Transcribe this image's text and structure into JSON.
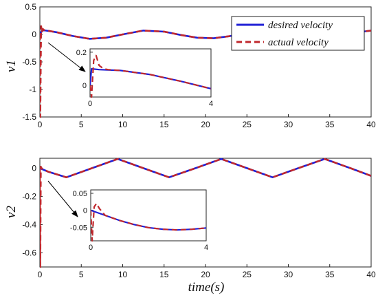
{
  "chart_data": [
    {
      "type": "line",
      "ylabel": "v1",
      "xlim": [
        0,
        40
      ],
      "ylim": [
        -1.5,
        0.5
      ],
      "xticks": [
        "0",
        "5",
        "10",
        "15",
        "20",
        "25",
        "30",
        "35",
        "40"
      ],
      "yticks": [
        "0.5",
        "0",
        "-0.5",
        "-1",
        "-1.5"
      ],
      "legend": {
        "position": "top-right",
        "entries": [
          "desired velocity",
          "actual velocity"
        ]
      },
      "series": [
        {
          "name": "desired velocity",
          "color": "#1f1fd6",
          "style": "solid",
          "x": [
            0,
            0.3,
            2,
            4,
            6,
            8,
            10,
            12.5,
            15,
            17,
            19,
            21,
            23,
            25,
            27,
            29,
            31,
            33,
            35,
            37,
            39,
            40
          ],
          "y": [
            0,
            0.08,
            0.04,
            -0.03,
            -0.08,
            -0.06,
            0.0,
            0.07,
            0.05,
            -0.01,
            -0.06,
            -0.07,
            -0.03,
            0.03,
            0.07,
            0.06,
            0.0,
            -0.06,
            -0.07,
            -0.02,
            0.05,
            0.07
          ]
        },
        {
          "name": "actual velocity",
          "color": "#c0282d",
          "style": "dashed",
          "x": [
            0,
            0.05,
            0.15,
            0.25,
            0.35,
            0.5,
            2,
            4,
            6,
            8,
            10,
            12.5,
            15,
            17,
            19,
            21,
            23,
            25,
            27,
            29,
            31,
            33,
            35,
            37,
            39,
            40
          ],
          "y": [
            0,
            -1.5,
            0.15,
            0.05,
            0.1,
            0.08,
            0.04,
            -0.03,
            -0.08,
            -0.06,
            0.0,
            0.07,
            0.05,
            -0.01,
            -0.06,
            -0.07,
            -0.03,
            0.03,
            0.07,
            0.06,
            0.0,
            -0.06,
            -0.07,
            -0.02,
            0.05,
            0.07
          ]
        }
      ],
      "inset": {
        "xlim": [
          0,
          4
        ],
        "ylim": [
          -0.07,
          0.22
        ],
        "xticks": [
          "0",
          "4"
        ],
        "yticks": [
          "0.2",
          "0"
        ],
        "series": [
          {
            "name": "desired velocity",
            "x": [
              0,
              0.05,
              0.3,
              1,
              2,
              3,
              4
            ],
            "y": [
              0,
              0.1,
              0.095,
              0.09,
              0.065,
              0.025,
              -0.02
            ]
          },
          {
            "name": "actual velocity",
            "x": [
              0,
              0.05,
              0.12,
              0.2,
              0.3,
              0.45,
              0.6,
              1,
              2,
              3,
              4
            ],
            "y": [
              0,
              -0.07,
              0.15,
              0.18,
              0.12,
              0.1,
              0.095,
              0.09,
              0.065,
              0.025,
              -0.02
            ]
          }
        ]
      }
    },
    {
      "type": "line",
      "ylabel": "v2",
      "xlabel": "time(s)",
      "xlim": [
        0,
        40
      ],
      "ylim": [
        -0.7,
        0.07
      ],
      "xticks": [
        "0",
        "5",
        "10",
        "15",
        "20",
        "25",
        "30",
        "35",
        "40"
      ],
      "yticks": [
        "0",
        "-0.2",
        "-0.4",
        "-0.6"
      ],
      "series": [
        {
          "name": "desired velocity",
          "color": "#1f1fd6",
          "style": "solid",
          "x": [
            0,
            1,
            3.2,
            6.3,
            9.4,
            12.5,
            15.6,
            18.8,
            21.9,
            25,
            28.1,
            31.2,
            34.4,
            37.5,
            40
          ],
          "y": [
            0,
            -0.025,
            -0.065,
            0.0,
            0.065,
            0.0,
            -0.065,
            0.0,
            0.065,
            0.0,
            -0.065,
            0.0,
            0.065,
            0.0,
            -0.055
          ]
        },
        {
          "name": "actual velocity",
          "color": "#c0282d",
          "style": "dashed",
          "x": [
            0,
            0.05,
            0.12,
            0.2,
            0.3,
            1,
            3.2,
            6.3,
            9.4,
            12.5,
            15.6,
            18.8,
            21.9,
            25,
            28.1,
            31.2,
            34.4,
            37.5,
            40
          ],
          "y": [
            0,
            -0.7,
            0.01,
            0.0,
            -0.005,
            -0.025,
            -0.065,
            0.0,
            0.065,
            0.0,
            -0.065,
            0.0,
            0.065,
            0.0,
            -0.065,
            0.0,
            0.065,
            0.0,
            -0.055
          ]
        }
      ],
      "inset": {
        "xlim": [
          0,
          4
        ],
        "ylim": [
          -0.09,
          0.06
        ],
        "xticks": [
          "0",
          "4"
        ],
        "yticks": [
          "0.05",
          "0",
          "-0.05"
        ],
        "series": [
          {
            "name": "desired velocity",
            "x": [
              0,
              0.5,
              1,
              1.5,
              2,
              2.5,
              3,
              3.5,
              4
            ],
            "y": [
              0,
              -0.015,
              -0.03,
              -0.042,
              -0.051,
              -0.056,
              -0.058,
              -0.056,
              -0.052
            ]
          },
          {
            "name": "actual velocity",
            "x": [
              0,
              0.05,
              0.12,
              0.2,
              0.3,
              0.5,
              1,
              1.5,
              2,
              2.5,
              3,
              3.5,
              4
            ],
            "y": [
              0,
              -0.09,
              0.01,
              0.02,
              0.005,
              -0.015,
              -0.03,
              -0.042,
              -0.051,
              -0.056,
              -0.058,
              -0.056,
              -0.052
            ]
          }
        ]
      }
    }
  ]
}
